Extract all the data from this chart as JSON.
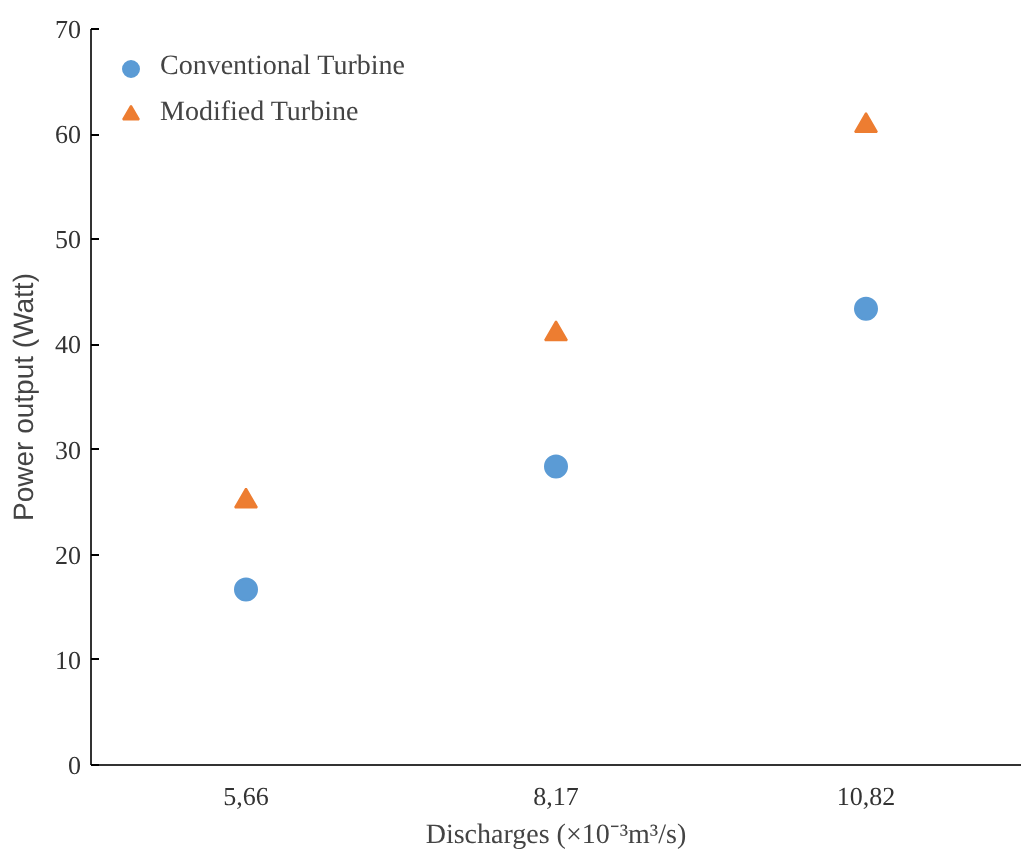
{
  "chart_data": {
    "type": "scatter",
    "xlabel": "Discharges (×10⁻³m³/s)",
    "ylabel": "Power output (Watt)",
    "categories": [
      "5,66",
      "8,17",
      "10,82"
    ],
    "series": [
      {
        "name": "Conventional Turbine",
        "color": "#5b9bd5",
        "marker": "circle",
        "values": [
          16.7,
          28.4,
          43.4
        ]
      },
      {
        "name": "Modified Turbine",
        "color": "#ed7d31",
        "marker": "triangle",
        "values": [
          25.1,
          41.0,
          60.8
        ]
      }
    ],
    "ylim": [
      0,
      70
    ],
    "yticks": [
      0,
      10,
      20,
      30,
      40,
      50,
      60,
      70
    ],
    "grid": false,
    "legend": "top left"
  }
}
